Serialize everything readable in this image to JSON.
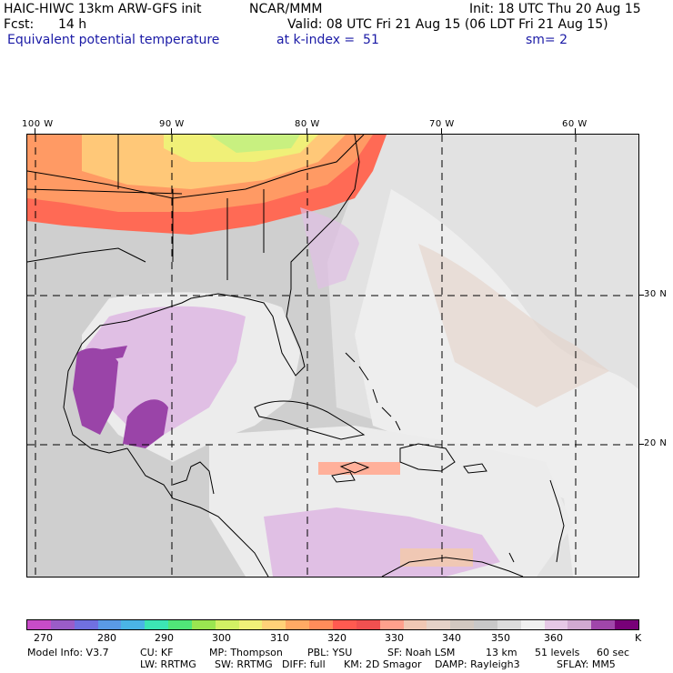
{
  "header": {
    "model": "HAIC-HIWC 13km ARW-GFS init",
    "org": "NCAR/MMM",
    "init": "Init: 18 UTC Thu 20 Aug 15",
    "fcst_label": "Fcst:",
    "fcst_value": "14 h",
    "valid": "Valid: 08 UTC Fri 21 Aug 15 (06 LDT Fri 21 Aug 15)",
    "field": "Equivalent potential temperature",
    "level": "at k-index =  51",
    "smooth": "sm= 2"
  },
  "axes": {
    "lon_labels": [
      "100 W",
      "90 W",
      "80 W",
      "70 W",
      "60 W"
    ],
    "lat_labels": [
      "30 N",
      "20 N"
    ]
  },
  "colorbar": {
    "colors": [
      "#c84cc8",
      "#9a5cc8",
      "#7070e0",
      "#5a9ae6",
      "#4ab4e6",
      "#3ce6b4",
      "#50e678",
      "#9ae650",
      "#d2f064",
      "#f0f078",
      "#ffd278",
      "#ffaa64",
      "#ff8c5a",
      "#ff5a50",
      "#f05050",
      "#ffa08c",
      "#f0c8b4",
      "#e6d2c8",
      "#d2c8c0",
      "#c8c8c8",
      "#dcdcdc",
      "#f0f0f0",
      "#e6c8e6",
      "#d2aad2",
      "#a046aa",
      "#780078"
    ],
    "labels": [
      "270",
      "280",
      "290",
      "300",
      "310",
      "320",
      "330",
      "340",
      "350",
      "360",
      "K"
    ],
    "legend_colors": {
      "land_default": "#cfcfcf",
      "ocean_light": "#ededed",
      "warm_band": "#ff5a50",
      "cool_band": "#ffd278",
      "pink": "#e6c8e6",
      "purple": "#a046aa"
    }
  },
  "footer": {
    "line1": [
      "Model Info: V3.7",
      "CU: KF",
      "MP: Thompson",
      "PBL: YSU",
      "SF: Noah LSM",
      "13 km",
      "51 levels",
      "60 sec"
    ],
    "line2": [
      "LW: RRTMG",
      "SW: RRTMG",
      "DIFF: full",
      "KM: 2D Smagor",
      "DAMP: Rayleigh3",
      "SFLAY: MM5"
    ]
  }
}
